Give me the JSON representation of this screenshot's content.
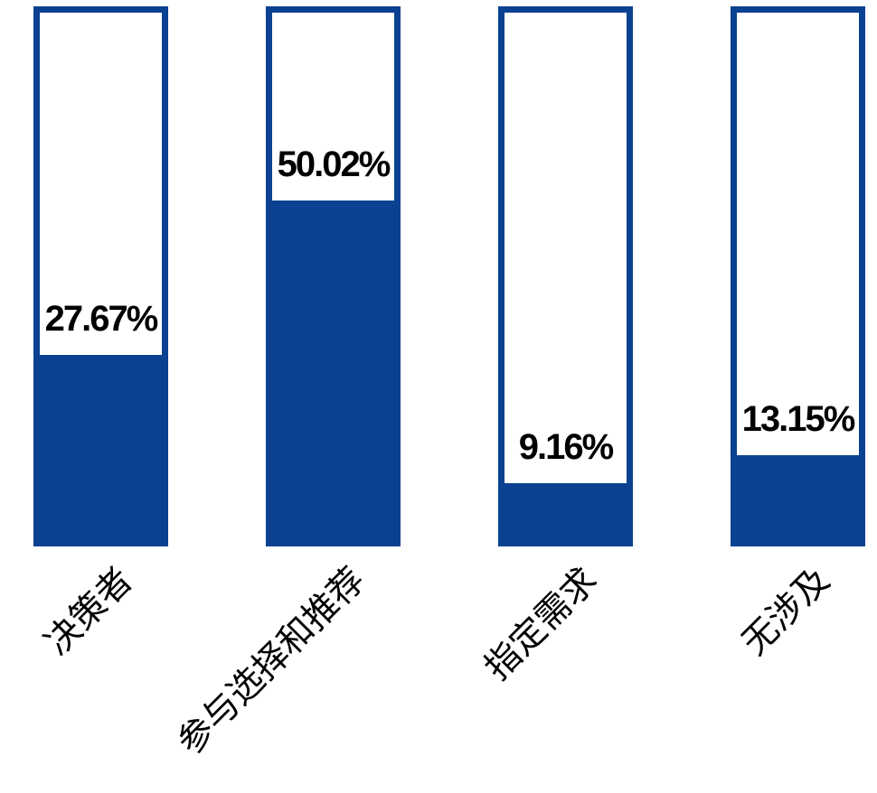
{
  "chart_data": {
    "type": "bar",
    "title": "",
    "xlabel": "",
    "ylabel": "",
    "categories": [
      "决策者",
      "参与选择和推荐",
      "指定需求",
      "无涉及"
    ],
    "values": [
      27.67,
      50.02,
      9.16,
      13.15
    ],
    "value_labels": [
      "27.67%",
      "50.02%",
      "9.16%",
      "13.15%"
    ],
    "unit": "%",
    "ylim": [
      0,
      78
    ],
    "grid": false,
    "legend_position": "none",
    "bar_orientation": "vertical",
    "category_label_rotation_deg": 45
  },
  "colors": {
    "bar_fill": "#0A4191",
    "bar_frame": "#0A4191",
    "bar_empty_background": "#FFFFFF",
    "label_text": "#000000",
    "page_background": "#FFFFFF"
  }
}
